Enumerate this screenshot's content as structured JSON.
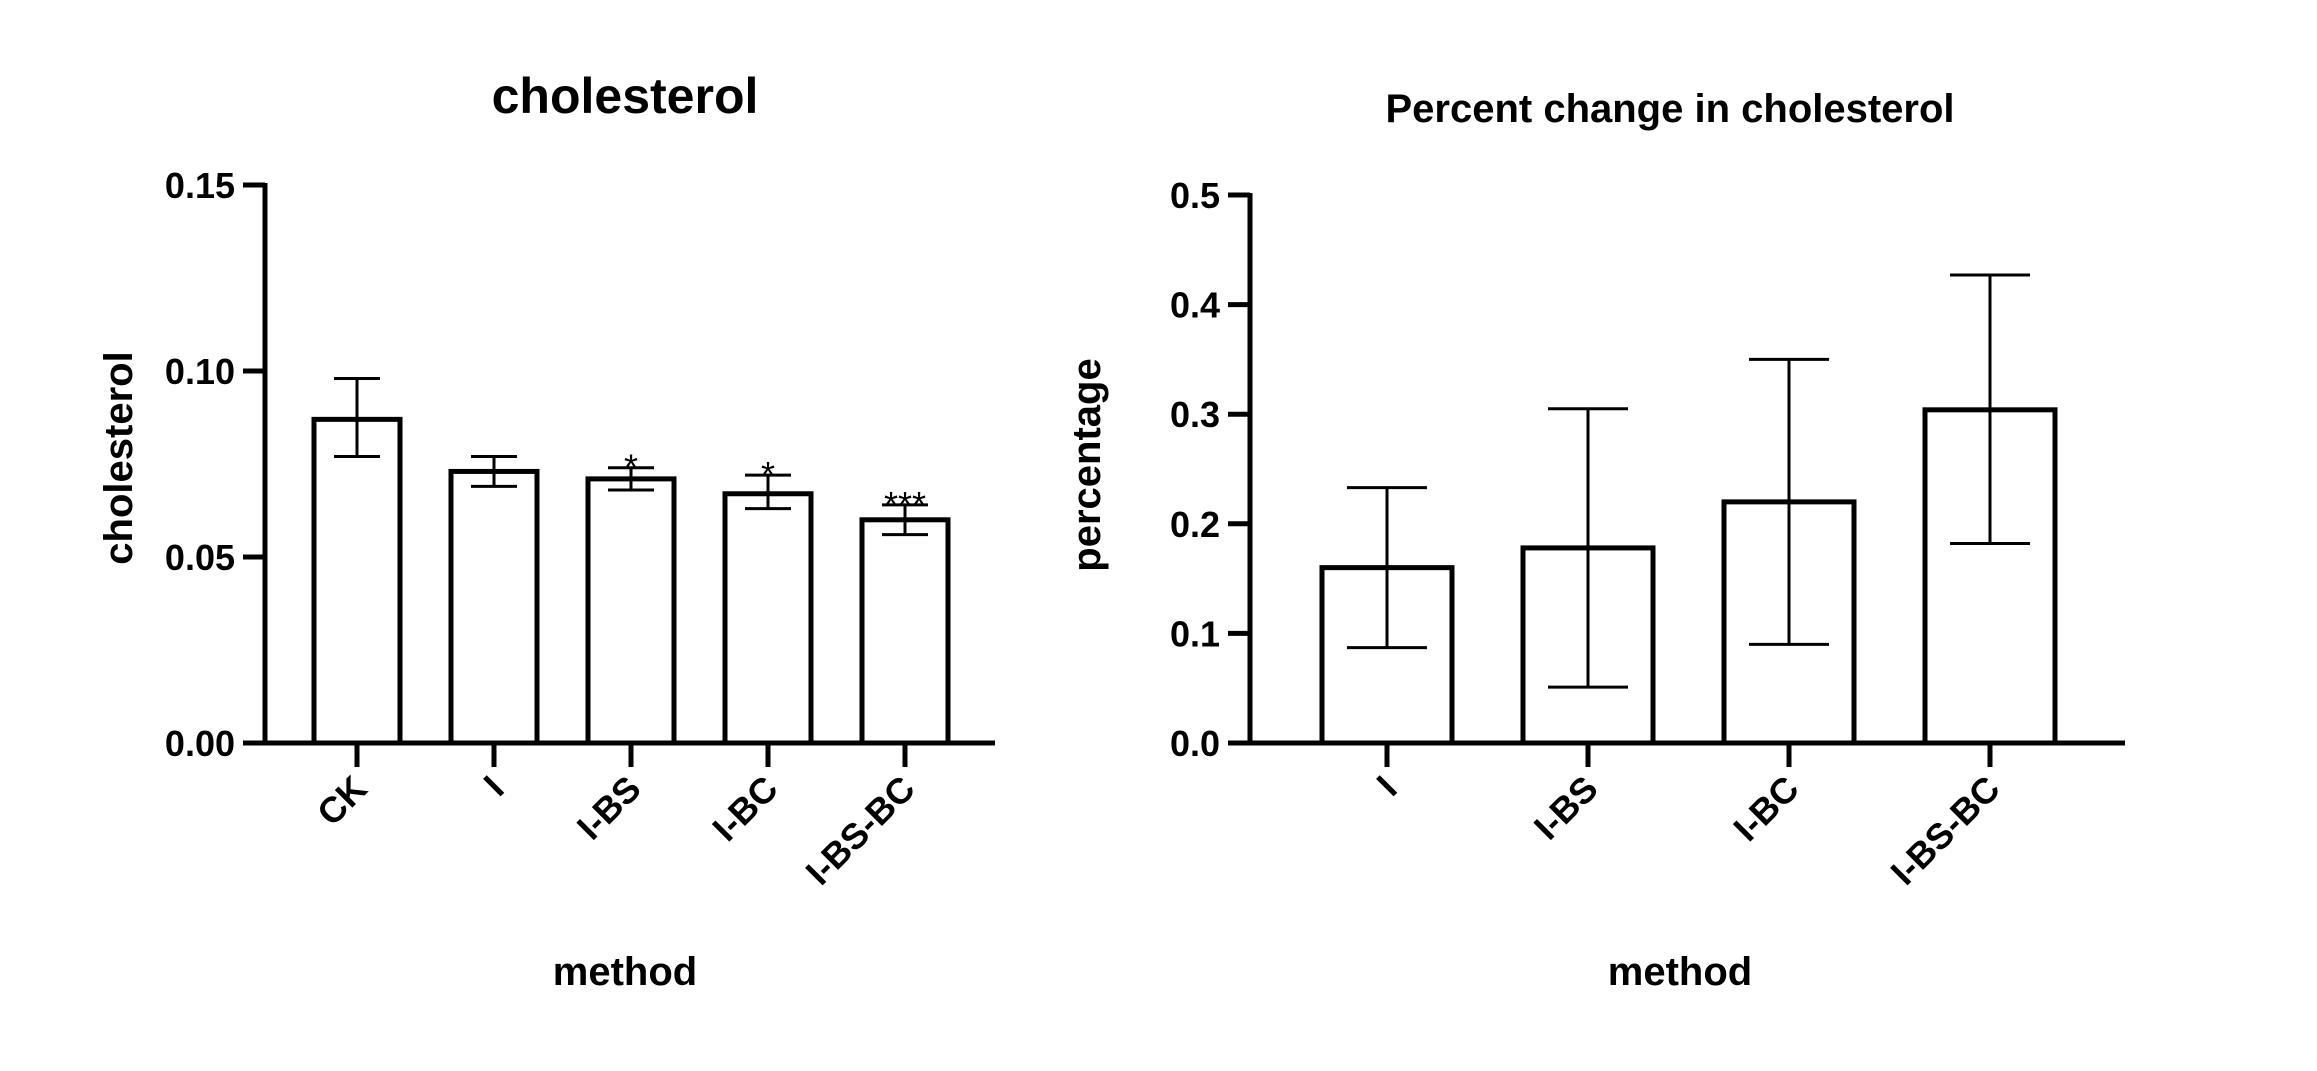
{
  "chart_data": [
    {
      "type": "bar",
      "title": "cholesterol",
      "xlabel": "method",
      "ylabel": "cholesterol",
      "categories": [
        "CK",
        "I",
        "I-BS",
        "I-BC",
        "I-BS-BC"
      ],
      "series": [
        {
          "values": [
            0.087,
            0.073,
            0.071,
            0.067,
            0.06
          ],
          "error_low": [
            0.077,
            0.069,
            0.068,
            0.063,
            0.056
          ],
          "error_high": [
            0.098,
            0.077,
            0.074,
            0.072,
            0.064
          ]
        }
      ],
      "annotations": [
        "",
        "",
        "*",
        "*",
        "***"
      ],
      "ylim": [
        0,
        0.15
      ],
      "yticks": [
        "0.00",
        "0.05",
        "0.10",
        "0.15"
      ],
      "grid": false,
      "bar_fill": "#ffffff",
      "bar_stroke": "#000000"
    },
    {
      "type": "bar",
      "title": "Percent change in cholesterol",
      "xlabel": "method",
      "ylabel": "percentage",
      "categories": [
        "I",
        "I-BS",
        "I-BC",
        "I-BS-BC"
      ],
      "series": [
        {
          "values": [
            0.16,
            0.178,
            0.22,
            0.304
          ],
          "error_low": [
            0.087,
            0.051,
            0.09,
            0.182
          ],
          "error_high": [
            0.233,
            0.305,
            0.35,
            0.427
          ]
        }
      ],
      "ylim": [
        0,
        0.5
      ],
      "yticks": [
        "0.0",
        "0.1",
        "0.2",
        "0.3",
        "0.4",
        "0.5"
      ],
      "grid": false,
      "bar_fill": "#ffffff",
      "bar_stroke": "#000000"
    }
  ]
}
